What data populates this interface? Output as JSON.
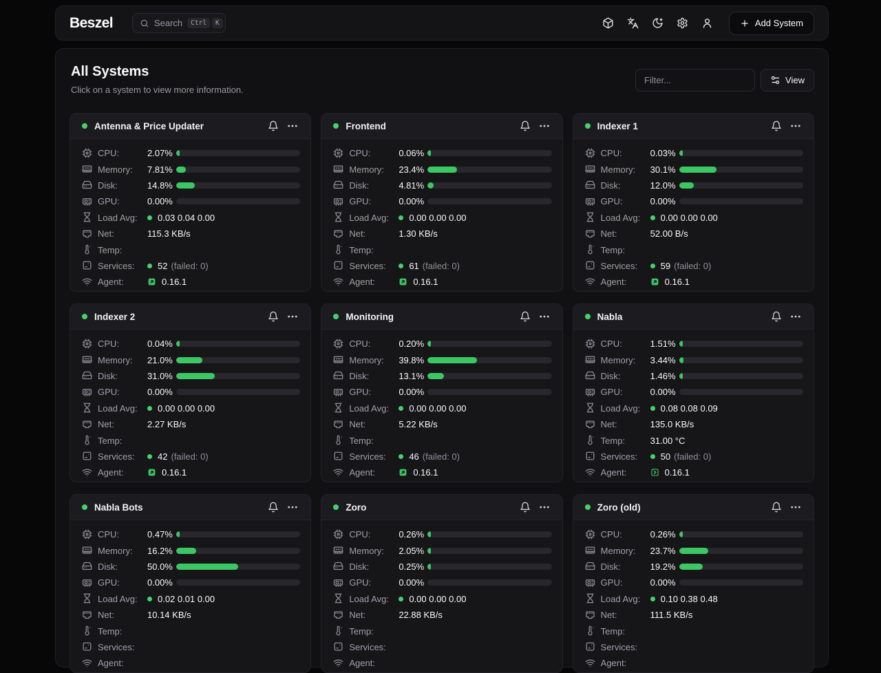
{
  "header": {
    "logo": "Beszel",
    "search": {
      "placeholder": "Search",
      "shortcut_keys": [
        "Ctrl",
        "K"
      ]
    },
    "action_icons": [
      "package-icon",
      "languages-icon",
      "moon-icon",
      "settings-icon",
      "user-icon"
    ],
    "add_system": {
      "label": "Add System",
      "icon": "plus-icon"
    }
  },
  "page": {
    "title": "All Systems",
    "subtitle": "Click on a system to view more information.",
    "filter_placeholder": "Filter...",
    "view_button": {
      "label": "View",
      "icon": "sliders-icon"
    }
  },
  "labels": {
    "cpu": "CPU:",
    "memory": "Memory:",
    "disk": "Disk:",
    "gpu": "GPU:",
    "load_avg": "Load Avg:",
    "net": "Net:",
    "temp": "Temp:",
    "services": "Services:",
    "agent": "Agent:"
  },
  "colors": {
    "accent_green": "#3cc765",
    "status_dot_green": "#44d36b",
    "card_bg": "#161619",
    "bar_track": "#27272c",
    "page_bg": "#070708"
  },
  "systems": [
    {
      "name": "Antenna & Price Updater",
      "status": "up",
      "cpu": {
        "value": "2.07%",
        "pct": 2.07
      },
      "memory": {
        "value": "7.81%",
        "pct": 7.81
      },
      "disk": {
        "value": "14.8%",
        "pct": 14.8
      },
      "gpu": {
        "value": "0.00%",
        "pct": 0
      },
      "load_avg": "0.03 0.04 0.00",
      "net": "115.3 KB/s",
      "temp": "",
      "services": {
        "count": "52",
        "failed": "(failed: 0)"
      },
      "agent": {
        "version": "0.16.1",
        "icon": "update"
      }
    },
    {
      "name": "Frontend",
      "status": "up",
      "cpu": {
        "value": "0.06%",
        "pct": 0.06
      },
      "memory": {
        "value": "23.4%",
        "pct": 23.4
      },
      "disk": {
        "value": "4.81%",
        "pct": 4.81
      },
      "gpu": {
        "value": "0.00%",
        "pct": 0
      },
      "load_avg": "0.00 0.00 0.00",
      "net": "1.30 KB/s",
      "temp": "",
      "services": {
        "count": "61",
        "failed": "(failed: 0)"
      },
      "agent": {
        "version": "0.16.1",
        "icon": "update"
      }
    },
    {
      "name": "Indexer 1",
      "status": "up",
      "cpu": {
        "value": "0.03%",
        "pct": 0.03
      },
      "memory": {
        "value": "30.1%",
        "pct": 30.1
      },
      "disk": {
        "value": "12.0%",
        "pct": 12.0
      },
      "gpu": {
        "value": "0.00%",
        "pct": 0
      },
      "load_avg": "0.00 0.00 0.00",
      "net": "52.00 B/s",
      "temp": "",
      "services": {
        "count": "59",
        "failed": "(failed: 0)"
      },
      "agent": {
        "version": "0.16.1",
        "icon": "update"
      }
    },
    {
      "name": "Indexer 2",
      "status": "up",
      "cpu": {
        "value": "0.04%",
        "pct": 0.04
      },
      "memory": {
        "value": "21.0%",
        "pct": 21.0
      },
      "disk": {
        "value": "31.0%",
        "pct": 31.0
      },
      "gpu": {
        "value": "0.00%",
        "pct": 0
      },
      "load_avg": "0.00 0.00 0.00",
      "net": "2.27 KB/s",
      "temp": "",
      "services": {
        "count": "42",
        "failed": "(failed: 0)"
      },
      "agent": {
        "version": "0.16.1",
        "icon": "update"
      }
    },
    {
      "name": "Monitoring",
      "status": "up",
      "cpu": {
        "value": "0.20%",
        "pct": 0.2
      },
      "memory": {
        "value": "39.8%",
        "pct": 39.8
      },
      "disk": {
        "value": "13.1%",
        "pct": 13.1
      },
      "gpu": {
        "value": "0.00%",
        "pct": 0
      },
      "load_avg": "0.00 0.00 0.00",
      "net": "5.22 KB/s",
      "temp": "",
      "services": {
        "count": "46",
        "failed": "(failed: 0)"
      },
      "agent": {
        "version": "0.16.1",
        "icon": "update"
      }
    },
    {
      "name": "Nabla",
      "status": "up",
      "cpu": {
        "value": "1.51%",
        "pct": 1.51
      },
      "memory": {
        "value": "3.44%",
        "pct": 3.44
      },
      "disk": {
        "value": "1.46%",
        "pct": 1.46
      },
      "gpu": {
        "value": "0.00%",
        "pct": 0
      },
      "load_avg": "0.08 0.08 0.09",
      "net": "135.0 KB/s",
      "temp": "31.00 °C",
      "services": {
        "count": "50",
        "failed": "(failed: 0)"
      },
      "agent": {
        "version": "0.16.1",
        "icon": "boxed"
      }
    },
    {
      "name": "Nabla Bots",
      "status": "up",
      "cpu": {
        "value": "0.47%",
        "pct": 0.47
      },
      "memory": {
        "value": "16.2%",
        "pct": 16.2
      },
      "disk": {
        "value": "50.0%",
        "pct": 50.0
      },
      "gpu": {
        "value": "0.00%",
        "pct": 0
      },
      "load_avg": "0.02 0.01 0.00",
      "net": "10.14 KB/s"
    },
    {
      "name": "Zoro",
      "status": "up",
      "cpu": {
        "value": "0.26%",
        "pct": 0.26
      },
      "memory": {
        "value": "2.05%",
        "pct": 2.05
      },
      "disk": {
        "value": "0.25%",
        "pct": 0.25
      },
      "gpu": {
        "value": "0.00%",
        "pct": 0
      },
      "load_avg": "0.00 0.00 0.00",
      "net": "22.88 KB/s"
    },
    {
      "name": "Zoro (old)",
      "status": "up",
      "cpu": {
        "value": "0.26%",
        "pct": 0.26
      },
      "memory": {
        "value": "23.7%",
        "pct": 23.7
      },
      "disk": {
        "value": "19.2%",
        "pct": 19.2
      },
      "gpu": {
        "value": "0.00%",
        "pct": 0
      },
      "load_avg": "0.10 0.38 0.48",
      "net": "111.5 KB/s"
    }
  ]
}
